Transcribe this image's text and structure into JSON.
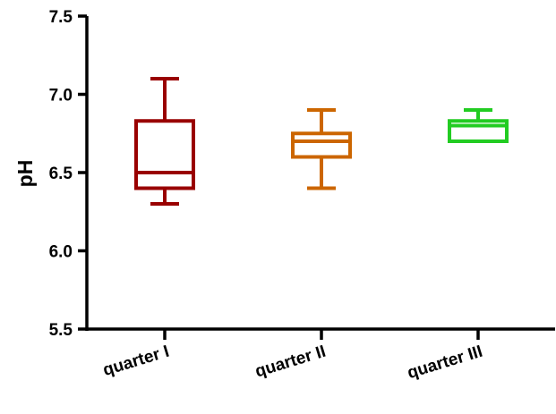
{
  "chart_data": {
    "type": "box",
    "xlabel": "",
    "ylabel": "pH",
    "ylim": [
      5.5,
      7.5
    ],
    "yticks": [
      "5.5",
      "6.0",
      "6.5",
      "7.0",
      "7.5"
    ],
    "ytick_values": [
      5.5,
      6.0,
      6.5,
      7.0,
      7.5
    ],
    "grid": false,
    "categories": [
      "quarter I",
      "quarter II",
      "quarter III"
    ],
    "boxes": [
      {
        "min": 6.3,
        "q1": 6.4,
        "median": 6.5,
        "q3": 6.83,
        "max": 7.1,
        "color": "#990000"
      },
      {
        "min": 6.4,
        "q1": 6.6,
        "median": 6.7,
        "q3": 6.75,
        "max": 6.9,
        "color": "#cc6600"
      },
      {
        "min": 6.7,
        "q1": 6.7,
        "median": 6.8,
        "q3": 6.83,
        "max": 6.9,
        "color": "#22cc22"
      }
    ]
  }
}
